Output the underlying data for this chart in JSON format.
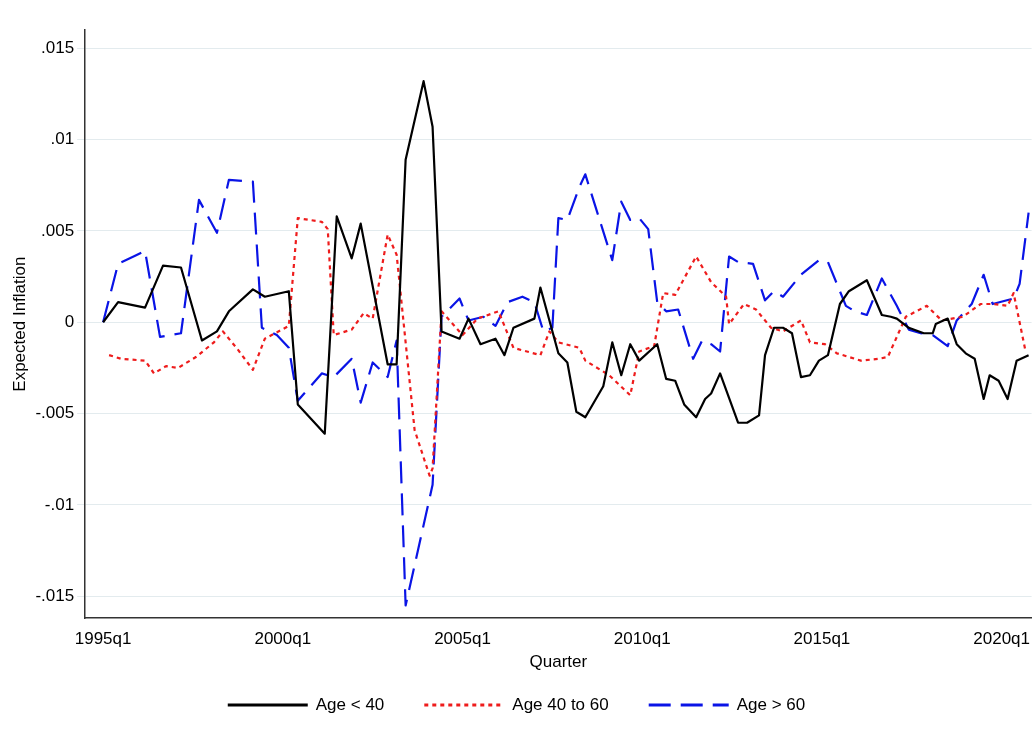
{
  "chart_data": {
    "type": "line",
    "xlabel": "Quarter",
    "ylabel": "Expected Inflation",
    "xlim": [
      "1994-07",
      "2020-11"
    ],
    "ylim": [
      -0.0162,
      0.016
    ],
    "xticks": [
      {
        "value": "1995-01",
        "label": "1995q1"
      },
      {
        "value": "2000-01",
        "label": "2000q1"
      },
      {
        "value": "2005-01",
        "label": "2005q1"
      },
      {
        "value": "2010-01",
        "label": "2010q1"
      },
      {
        "value": "2015-01",
        "label": "2015q1"
      },
      {
        "value": "2020-01",
        "label": "2020q1"
      }
    ],
    "yticks": [
      {
        "value": -0.015,
        "label": "-.015"
      },
      {
        "value": -0.01,
        "label": "-.01"
      },
      {
        "value": -0.005,
        "label": "-.005"
      },
      {
        "value": 0,
        "label": "0"
      },
      {
        "value": 0.005,
        "label": ".005"
      },
      {
        "value": 0.01,
        "label": ".01"
      },
      {
        "value": 0.015,
        "label": ".015"
      }
    ],
    "grid": "y",
    "legend": "bottom",
    "marker": "none",
    "series": [
      {
        "name": "Age < 40",
        "color": "#000000",
        "line_style": "solid",
        "x": [
          "1995-01",
          "1995-06",
          "1996-03",
          "1996-09",
          "1997-03",
          "1997-10",
          "1998-03",
          "1998-07",
          "1999-03",
          "1999-07",
          "2000-03",
          "2000-06",
          "2001-03",
          "2001-07",
          "2001-12",
          "2002-03",
          "2002-12",
          "2003-03",
          "2003-06",
          "2003-12",
          "2004-03",
          "2004-06",
          "2004-12",
          "2005-03",
          "2005-07",
          "2005-12",
          "2006-03",
          "2006-06",
          "2007-01",
          "2007-03",
          "2007-09",
          "2007-12",
          "2008-03",
          "2008-06",
          "2008-12",
          "2009-03",
          "2009-06",
          "2009-09",
          "2009-12",
          "2010-06",
          "2010-09",
          "2010-12",
          "2011-03",
          "2011-07",
          "2011-10",
          "2011-12",
          "2012-03",
          "2012-09",
          "2012-12",
          "2013-04",
          "2013-06",
          "2013-09",
          "2013-12",
          "2014-03",
          "2014-06",
          "2014-09",
          "2014-12",
          "2015-03",
          "2015-07",
          "2015-10",
          "2016-04",
          "2016-09",
          "2016-12",
          "2017-02",
          "2017-06",
          "2017-11",
          "2018-02",
          "2018-03",
          "2018-07",
          "2018-10",
          "2019-01",
          "2019-04",
          "2019-07",
          "2019-09",
          "2019-12",
          "2020-03",
          "2020-06",
          "2020-10"
        ],
        "values": [
          0.0,
          0.0011,
          0.0008,
          0.0031,
          0.003,
          -0.001,
          -0.0005,
          0.0006,
          0.0018,
          0.0014,
          0.0017,
          -0.0045,
          -0.0061,
          0.0058,
          0.0035,
          0.0054,
          -0.0023,
          -0.0023,
          0.0089,
          0.0132,
          0.0107,
          -0.0005,
          -0.0009,
          0.0002,
          -0.0012,
          -0.0009,
          -0.0018,
          -0.0003,
          0.0002,
          0.0019,
          -0.0017,
          -0.0022,
          -0.0049,
          -0.0052,
          -0.0035,
          -0.0011,
          -0.0029,
          -0.0012,
          -0.0021,
          -0.0012,
          -0.0031,
          -0.0032,
          -0.0045,
          -0.0052,
          -0.0042,
          -0.0039,
          -0.0028,
          -0.0055,
          -0.0055,
          -0.0051,
          -0.0018,
          -0.0003,
          -0.0003,
          -0.0006,
          -0.003,
          -0.0029,
          -0.0021,
          -0.0018,
          0.001,
          0.0017,
          0.0023,
          0.0004,
          0.0003,
          0.0002,
          -0.0003,
          -0.0006,
          -0.0006,
          -0.0001,
          0.0002,
          -0.0012,
          -0.0017,
          -0.002,
          -0.0042,
          -0.0029,
          -0.0032,
          -0.0042,
          -0.0021,
          -0.0018
        ]
      },
      {
        "name": "Age 40 to 60",
        "color": "#ee1c1c",
        "line_style": "dotted",
        "x": [
          "1995-03",
          "1995-07",
          "1996-03",
          "1996-06",
          "1996-10",
          "1997-02",
          "1997-08",
          "1998-02",
          "1998-05",
          "1998-10",
          "1999-03",
          "1999-07",
          "2000-03",
          "2000-06",
          "2001-02",
          "2001-04",
          "2001-06",
          "2001-12",
          "2002-04",
          "2002-07",
          "2002-12",
          "2003-03",
          "2003-09",
          "2004-02",
          "2004-03",
          "2004-06",
          "2005-01",
          "2005-06",
          "2006-01",
          "2006-06",
          "2007-03",
          "2007-06",
          "2007-09",
          "2008-04",
          "2008-06",
          "2009-02",
          "2009-09",
          "2009-12",
          "2010-05",
          "2010-08",
          "2010-12",
          "2011-07",
          "2011-12",
          "2012-05",
          "2012-06",
          "2012-11",
          "2013-03",
          "2013-08",
          "2013-12",
          "2014-06",
          "2014-09",
          "2015-02",
          "2015-06",
          "2016-02",
          "2016-08",
          "2016-11",
          "2017-05",
          "2017-12",
          "2018-05",
          "2018-12",
          "2019-06",
          "2019-10",
          "2020-03",
          "2020-05",
          "2020-06",
          "2020-09"
        ],
        "values": [
          -0.0018,
          -0.002,
          -0.0021,
          -0.0028,
          -0.0024,
          -0.0025,
          -0.0019,
          -0.0011,
          -0.0005,
          -0.0015,
          -0.0026,
          -0.0009,
          -0.0002,
          0.0057,
          0.0055,
          0.0051,
          -0.0007,
          -0.0004,
          0.0005,
          0.0002,
          0.0048,
          0.0037,
          -0.0059,
          -0.0084,
          -0.008,
          0.0006,
          -0.0007,
          0.0002,
          0.0006,
          -0.0014,
          -0.0018,
          -0.0005,
          -0.0011,
          -0.0014,
          -0.0021,
          -0.0029,
          -0.004,
          -0.0016,
          -0.0013,
          0.0016,
          0.0015,
          0.0036,
          0.0022,
          0.0014,
          -0.0001,
          0.001,
          0.0007,
          -0.0003,
          -0.0005,
          0.0001,
          -0.0011,
          -0.0012,
          -0.0017,
          -0.0021,
          -0.002,
          -0.0019,
          0.0003,
          0.0009,
          0.0001,
          0.0003,
          0.001,
          0.001,
          0.0009,
          0.0016,
          0.0008,
          -0.0016
        ]
      },
      {
        "name": "Age > 60",
        "color": "#0a14e6",
        "line_style": "dashed",
        "x": [
          "1995-01",
          "1995-06",
          "1996-03",
          "1996-08",
          "1997-03",
          "1997-09",
          "1998-03",
          "1998-07",
          "1999-03",
          "1999-06",
          "1999-11",
          "2000-03",
          "2000-06",
          "2001-02",
          "2001-06",
          "2001-12",
          "2002-03",
          "2002-07",
          "2002-12",
          "2003-03",
          "2003-06",
          "2004-03",
          "2004-06",
          "2004-12",
          "2005-03",
          "2005-08",
          "2005-12",
          "2006-04",
          "2006-09",
          "2007-01",
          "2007-04",
          "2007-07",
          "2007-09",
          "2007-12",
          "2008-04",
          "2008-06",
          "2009-03",
          "2009-06",
          "2009-09",
          "2009-12",
          "2010-03",
          "2010-06",
          "2010-09",
          "2011-01",
          "2011-06",
          "2011-09",
          "2011-12",
          "2012-03",
          "2012-06",
          "2012-09",
          "2013-02",
          "2013-06",
          "2013-09",
          "2013-12",
          "2014-06",
          "2014-12",
          "2015-03",
          "2015-09",
          "2015-12",
          "2016-04",
          "2016-09",
          "2017-02",
          "2017-06",
          "2017-10",
          "2018-02",
          "2018-07",
          "2018-10",
          "2019-03",
          "2019-07",
          "2019-10",
          "2020-05",
          "2020-07",
          "2020-10"
        ],
        "values": [
          0.0,
          0.0032,
          0.0039,
          -0.0008,
          -0.0006,
          0.0067,
          0.0049,
          0.0078,
          0.0077,
          -0.0003,
          -0.0007,
          -0.0014,
          -0.0043,
          -0.0028,
          -0.003,
          -0.002,
          -0.0044,
          -0.0022,
          -0.003,
          -0.001,
          -0.0155,
          -0.0089,
          0.0003,
          0.0013,
          0.0001,
          0.0003,
          -0.0002,
          0.0011,
          0.0014,
          0.0011,
          -0.0005,
          -0.0003,
          0.0057,
          0.0056,
          0.0074,
          0.0081,
          0.0034,
          0.0066,
          0.0056,
          0.0057,
          0.0051,
          0.0011,
          0.0006,
          0.0007,
          -0.002,
          -0.001,
          -0.0012,
          -0.0016,
          0.0036,
          0.0033,
          0.0032,
          0.0012,
          0.0017,
          0.0014,
          0.0026,
          0.0034,
          0.0033,
          0.0009,
          0.0006,
          0.0004,
          0.0024,
          0.0009,
          -0.0004,
          -0.0006,
          -0.0007,
          -0.0013,
          0.0001,
          0.001,
          0.0026,
          0.001,
          0.0013,
          0.0021,
          0.006
        ]
      }
    ]
  }
}
